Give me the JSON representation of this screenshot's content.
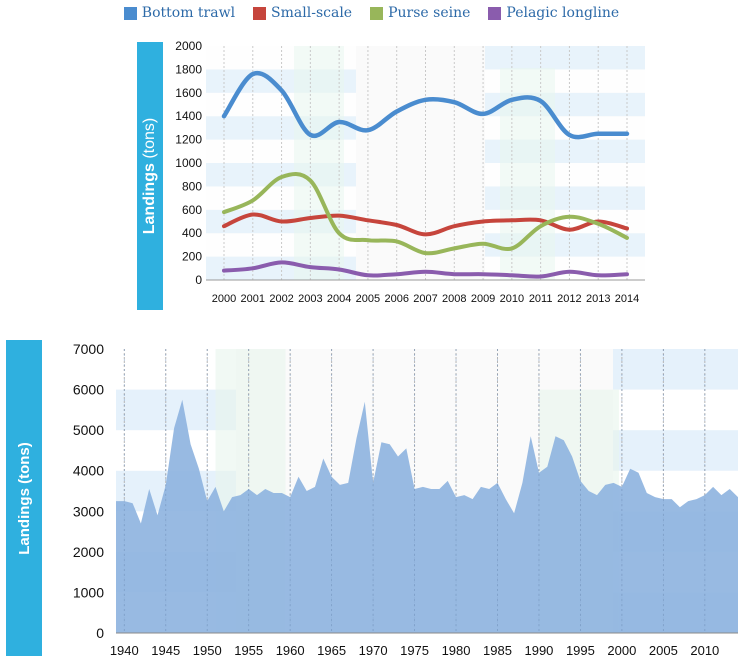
{
  "colors": {
    "bottom_trawl": "#4a8ccf",
    "small_scale": "#c6453c",
    "purse_seine": "#98b65a",
    "pelagic_longline": "#8a5cad",
    "area_fill": "#8fb4e0",
    "label_band": "#2fb0df"
  },
  "chart_data": [
    {
      "type": "line",
      "title": "",
      "xlabel": "",
      "ylabel": "Landings (tons)",
      "ylabel_main": "Landings",
      "ylabel_unit": "(tons)",
      "x": [
        2000,
        2001,
        2002,
        2003,
        2004,
        2005,
        2006,
        2007,
        2008,
        2009,
        2010,
        2011,
        2012,
        2013,
        2014
      ],
      "xticks": [
        "2000",
        "2001",
        "2002",
        "2003",
        "2004",
        "2005",
        "2006",
        "2007",
        "2008",
        "2009",
        "2010",
        "2011",
        "2012",
        "2013",
        "2014"
      ],
      "yticks": [
        0,
        200,
        400,
        600,
        800,
        1000,
        1200,
        1400,
        1600,
        1800,
        2000
      ],
      "ylim": [
        0,
        2000
      ],
      "legend": "top",
      "series": [
        {
          "name": "Bottom trawl",
          "color_key": "bottom_trawl",
          "values": [
            1400,
            1760,
            1620,
            1240,
            1350,
            1280,
            1440,
            1540,
            1520,
            1420,
            1540,
            1530,
            1240,
            1250,
            1250
          ]
        },
        {
          "name": "Small-scale",
          "color_key": "small_scale",
          "values": [
            460,
            560,
            500,
            530,
            550,
            510,
            470,
            390,
            460,
            500,
            510,
            510,
            430,
            500,
            440
          ]
        },
        {
          "name": "Purse seine",
          "color_key": "purse_seine",
          "values": [
            580,
            680,
            880,
            850,
            400,
            340,
            330,
            230,
            270,
            310,
            270,
            460,
            540,
            480,
            360
          ]
        },
        {
          "name": "Pelagic longline",
          "color_key": "pelagic_longline",
          "values": [
            80,
            100,
            150,
            110,
            90,
            40,
            50,
            70,
            50,
            50,
            40,
            30,
            70,
            40,
            50
          ]
        }
      ]
    },
    {
      "type": "area",
      "title": "",
      "xlabel": "",
      "ylabel": "Landings (tons)",
      "x": [
        1939,
        1940,
        1941,
        1942,
        1943,
        1944,
        1945,
        1946,
        1947,
        1948,
        1949,
        1950,
        1951,
        1952,
        1953,
        1954,
        1955,
        1956,
        1957,
        1958,
        1959,
        1960,
        1961,
        1962,
        1963,
        1964,
        1965,
        1966,
        1967,
        1968,
        1969,
        1970,
        1971,
        1972,
        1973,
        1974,
        1975,
        1976,
        1977,
        1978,
        1979,
        1980,
        1981,
        1982,
        1983,
        1984,
        1985,
        1986,
        1987,
        1988,
        1989,
        1990,
        1991,
        1992,
        1993,
        1994,
        1995,
        1996,
        1997,
        1998,
        1999,
        2000,
        2001,
        2002,
        2003,
        2004,
        2005,
        2006,
        2007,
        2008,
        2009,
        2010,
        2011,
        2012,
        2013,
        2014
      ],
      "values": [
        3250,
        3250,
        3200,
        2700,
        3550,
        2900,
        3650,
        5050,
        5750,
        4650,
        4050,
        3250,
        3600,
        3000,
        3350,
        3400,
        3550,
        3400,
        3550,
        3450,
        3450,
        3350,
        3850,
        3500,
        3600,
        4300,
        3850,
        3650,
        3700,
        4800,
        5700,
        3700,
        4700,
        4650,
        4350,
        4550,
        3550,
        3600,
        3550,
        3550,
        3750,
        3350,
        3400,
        3300,
        3600,
        3550,
        3700,
        3300,
        2950,
        3700,
        4850,
        3950,
        4100,
        4850,
        4750,
        4350,
        3750,
        3500,
        3400,
        3650,
        3700,
        3600,
        4050,
        3950,
        3450,
        3350,
        3300,
        3300,
        3100,
        3250,
        3300,
        3400,
        3600,
        3400,
        3550,
        3350
      ],
      "xticks": [
        1940,
        1945,
        1950,
        1955,
        1960,
        1965,
        1970,
        1975,
        1980,
        1985,
        1990,
        1995,
        2000,
        2005,
        2010
      ],
      "yticks": [
        0,
        1000,
        2000,
        3000,
        4000,
        5000,
        6000,
        7000
      ],
      "xlim": [
        1939,
        2014
      ],
      "ylim": [
        0,
        7000
      ]
    }
  ]
}
